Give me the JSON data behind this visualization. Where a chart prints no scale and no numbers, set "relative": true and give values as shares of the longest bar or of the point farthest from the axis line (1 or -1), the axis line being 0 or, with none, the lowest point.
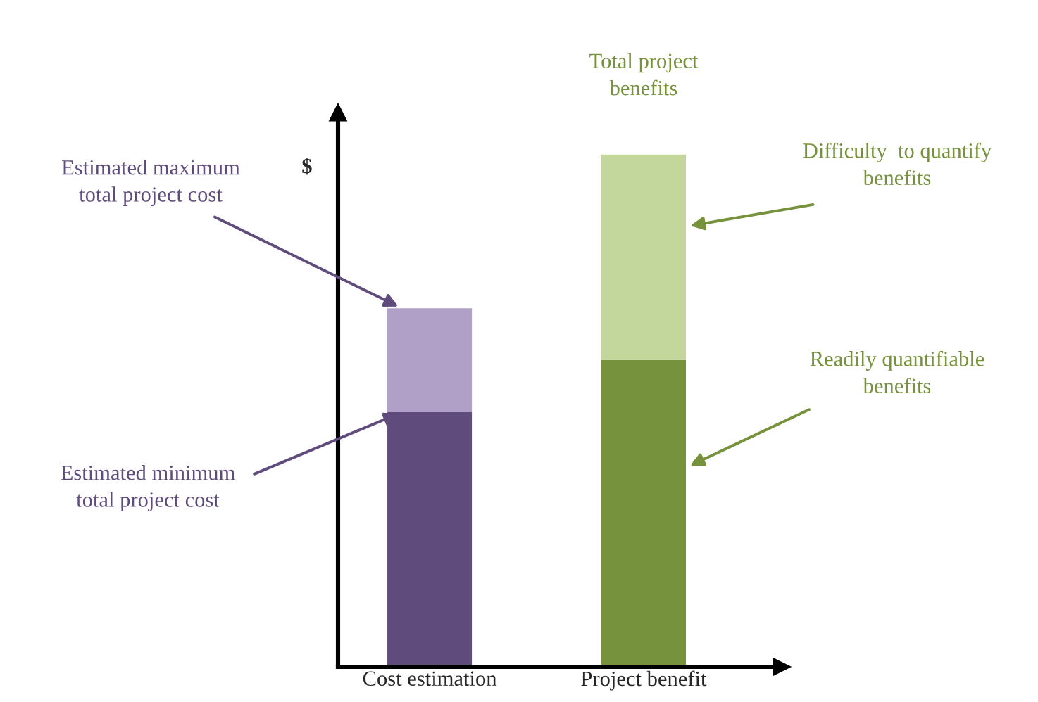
{
  "chart_data": {
    "type": "bar",
    "relative": true,
    "stacked": true,
    "ylabel": "$",
    "categories": [
      "Cost estimation",
      "Project benefit"
    ],
    "series": [
      {
        "colors": [
          "#5f4b7c",
          "#76923c"
        ],
        "values": [
          0.497,
          0.599
        ]
      },
      {
        "colors": [
          "#b09fc6",
          "#c3d69b"
        ],
        "values": [
          0.203,
          0.401
        ]
      }
    ],
    "annotations": [
      "Estimated maximum\ntotal project cost",
      "Estimated minimum\ntotal project cost",
      {
        "text": "Total project\nbenefits",
        "x": "Project benefit",
        "y": 1.0
      },
      "Difficulty  to quantify\nbenefits",
      "Readily quantifiable\nbenefits"
    ],
    "grid": false,
    "legend": false
  }
}
